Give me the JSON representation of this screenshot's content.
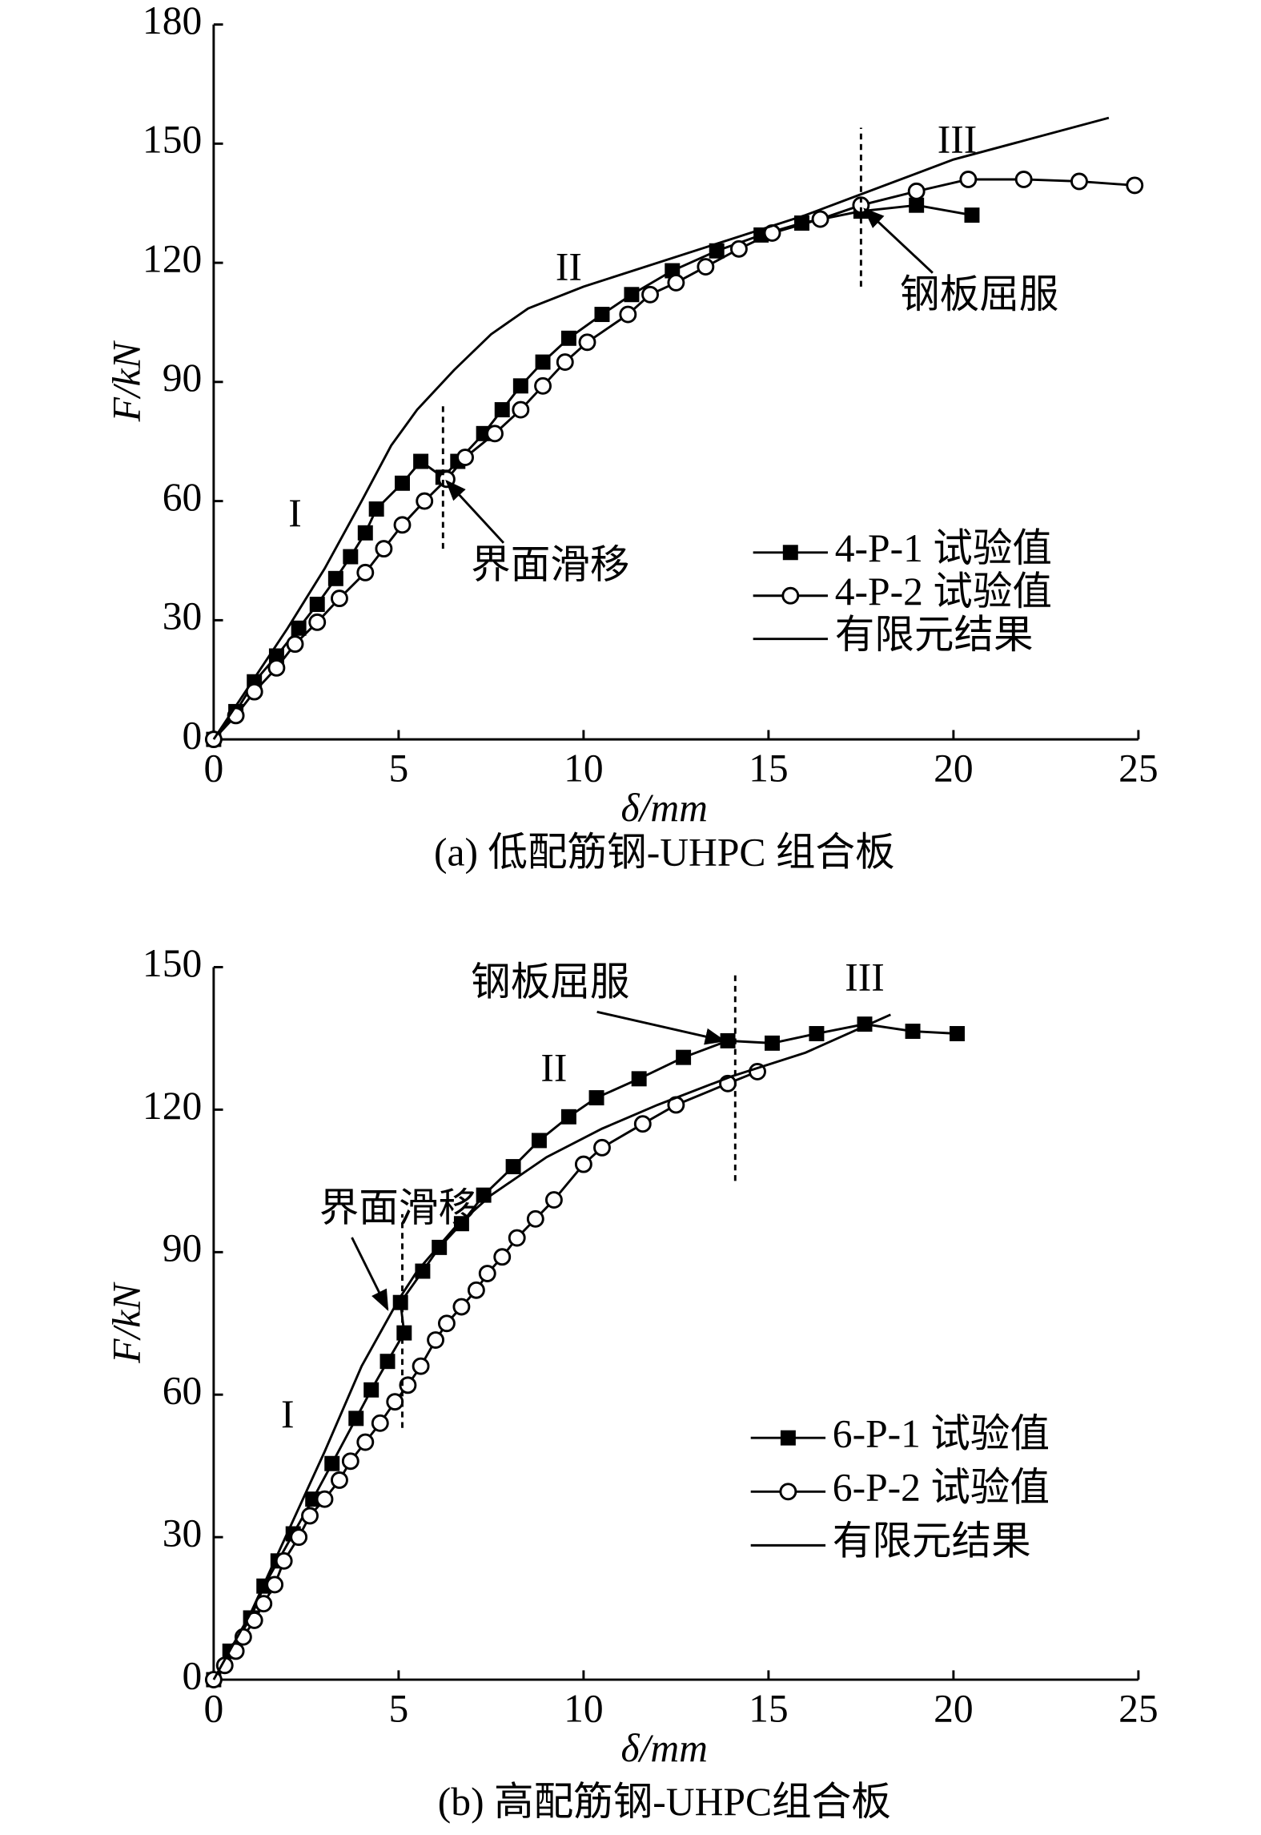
{
  "chart_data": [
    {
      "type": "line",
      "caption": "(a) 低配筋钢-UHPC 组合板",
      "xlabel": "δ/mm",
      "ylabel": "F/kN",
      "xlim": [
        0,
        25
      ],
      "xticks": [
        0,
        5,
        10,
        15,
        20,
        25
      ],
      "ylim": [
        0,
        180
      ],
      "yticks": [
        0,
        30,
        60,
        90,
        120,
        150,
        180
      ],
      "legend": "lower right",
      "series": [
        {
          "name": "4-P-1 试验值",
          "color": "#000000",
          "marker": "square",
          "x": [
            0,
            0.6,
            1.1,
            1.7,
            2.3,
            2.8,
            3.3,
            3.7,
            4.1,
            4.4,
            5.1,
            5.6,
            6.2,
            6.6,
            7.3,
            7.8,
            8.3,
            8.9,
            9.6,
            10.5,
            11.3,
            12.4,
            13.6,
            14.8,
            15.9,
            17.5,
            19,
            20.5
          ],
          "values": [
            0,
            7,
            14.5,
            21,
            28,
            34,
            40.5,
            46,
            52,
            58,
            64.5,
            70,
            66,
            70,
            77,
            83,
            89,
            95,
            101,
            107,
            112,
            118,
            123,
            127,
            130,
            133,
            134.5,
            132
          ]
        },
        {
          "name": "4-P-2 试验值",
          "color": "#000000",
          "marker": "circle",
          "x": [
            0,
            0.6,
            1.1,
            1.7,
            2.2,
            2.8,
            3.4,
            4.1,
            4.6,
            5.1,
            5.7,
            6.3,
            6.8,
            7.6,
            8.3,
            8.9,
            9.5,
            10.1,
            11.2,
            11.8,
            12.5,
            13.3,
            14.2,
            15.1,
            16.4,
            17.5,
            19,
            20.4,
            21.9,
            23.4,
            24.9
          ],
          "values": [
            0,
            6,
            12,
            18,
            24,
            29.5,
            35.5,
            42,
            48,
            54,
            60,
            65.5,
            71,
            77,
            83,
            89,
            95,
            100,
            107,
            112,
            115,
            119,
            123.5,
            127.5,
            131,
            134.5,
            138,
            141,
            141,
            140.5,
            139.5
          ]
        },
        {
          "name": "有限元结果",
          "color": "#000000",
          "marker": "none",
          "x": [
            0,
            1,
            2,
            3,
            4,
            4.8,
            5.5,
            6.5,
            7.5,
            8.5,
            10,
            12,
            14,
            16,
            18,
            20,
            22,
            24.2
          ],
          "values": [
            0,
            14,
            28,
            43,
            60,
            74,
            83,
            93,
            102,
            108.5,
            114,
            120,
            126,
            132,
            139,
            146,
            151,
            156.5
          ]
        }
      ],
      "annotations": [
        {
          "text": "I",
          "x": 2.2,
          "y": 56
        },
        {
          "text": "II",
          "x": 9.6,
          "y": 118
        },
        {
          "text": "III",
          "x": 20.1,
          "y": 150
        },
        {
          "text": "钢板屈服",
          "x": 20.7,
          "y": 111,
          "arrow_to": [
            17.6,
            133.5
          ]
        },
        {
          "text": "界面滑移",
          "x": 9.1,
          "y": 43,
          "arrow_to": [
            6.3,
            65
          ]
        }
      ],
      "vlines": [
        {
          "x": 6.2,
          "y": [
            48,
            84
          ]
        },
        {
          "x": 17.5,
          "y": [
            114,
            154
          ]
        }
      ]
    },
    {
      "type": "line",
      "caption": "(b) 高配筋钢-UHPC组合板",
      "xlabel": "δ/mm",
      "ylabel": "F/kN",
      "xlim": [
        0,
        25
      ],
      "xticks": [
        0,
        5,
        10,
        15,
        20,
        25
      ],
      "ylim": [
        0,
        150
      ],
      "yticks": [
        0,
        30,
        60,
        90,
        120,
        150
      ],
      "legend": "lower right",
      "series": [
        {
          "name": "6-P-1 试验值",
          "color": "#000000",
          "marker": "square",
          "x": [
            0,
            0.44,
            1,
            1.36,
            1.74,
            2.15,
            2.68,
            3.2,
            3.85,
            4.26,
            4.7,
            5.15,
            5.05,
            5.65,
            6.1,
            6.7,
            7.3,
            8.1,
            8.8,
            9.6,
            10.35,
            11.5,
            12.7,
            13.9,
            15.1,
            16.3,
            17.6,
            18.9,
            20.1
          ],
          "values": [
            0,
            6,
            13,
            19.7,
            25,
            30.7,
            38,
            45.5,
            55,
            61,
            67,
            73,
            79.4,
            86,
            91,
            96,
            102,
            108,
            113.5,
            118.5,
            122.5,
            126.5,
            131,
            134.5,
            134,
            136,
            138,
            136.5,
            136
          ]
        },
        {
          "name": "6-P-2 试验值",
          "color": "#000000",
          "marker": "circle",
          "x": [
            0,
            0.3,
            0.6,
            0.8,
            1.1,
            1.35,
            1.65,
            1.9,
            2.3,
            2.6,
            3,
            3.4,
            3.7,
            4.1,
            4.5,
            4.9,
            5.25,
            5.6,
            6,
            6.3,
            6.7,
            7.1,
            7.4,
            7.8,
            8.2,
            8.7,
            9.2,
            10,
            10.5,
            11.6,
            12.5,
            13.9,
            14.7
          ],
          "values": [
            0,
            3,
            6,
            9,
            12.5,
            16,
            20,
            25,
            30,
            34.5,
            38,
            42,
            46,
            50,
            54,
            58.5,
            62,
            66,
            71.5,
            75,
            78.5,
            82,
            85.5,
            89,
            93,
            97,
            101,
            108.5,
            112,
            117,
            121,
            125.5,
            128
          ]
        },
        {
          "name": "有限元结果",
          "color": "#000000",
          "marker": "none",
          "x": [
            0,
            1,
            2,
            3,
            4,
            5,
            5.5,
            6.5,
            7.5,
            9,
            10.5,
            12,
            14,
            16,
            18.3
          ],
          "values": [
            0,
            14,
            31,
            48,
            66,
            80,
            86,
            95,
            102,
            110,
            116,
            121,
            127,
            132,
            140
          ]
        }
      ],
      "annotations": [
        {
          "text": "I",
          "x": 2,
          "y": 55
        },
        {
          "text": "II",
          "x": 9.2,
          "y": 128
        },
        {
          "text": "III",
          "x": 17.6,
          "y": 147
        },
        {
          "text": "钢板屈服",
          "x": 9.1,
          "y": 146,
          "arrow_to": [
            13.8,
            134.5
          ]
        },
        {
          "text": "界面滑移",
          "x": 5,
          "y": 98.5,
          "arrow_to": [
            4.7,
            78
          ]
        }
      ],
      "vlines": [
        {
          "x": 5.1,
          "y": [
            53,
            98
          ]
        },
        {
          "x": 14.1,
          "y": [
            105,
            149
          ]
        }
      ]
    }
  ]
}
